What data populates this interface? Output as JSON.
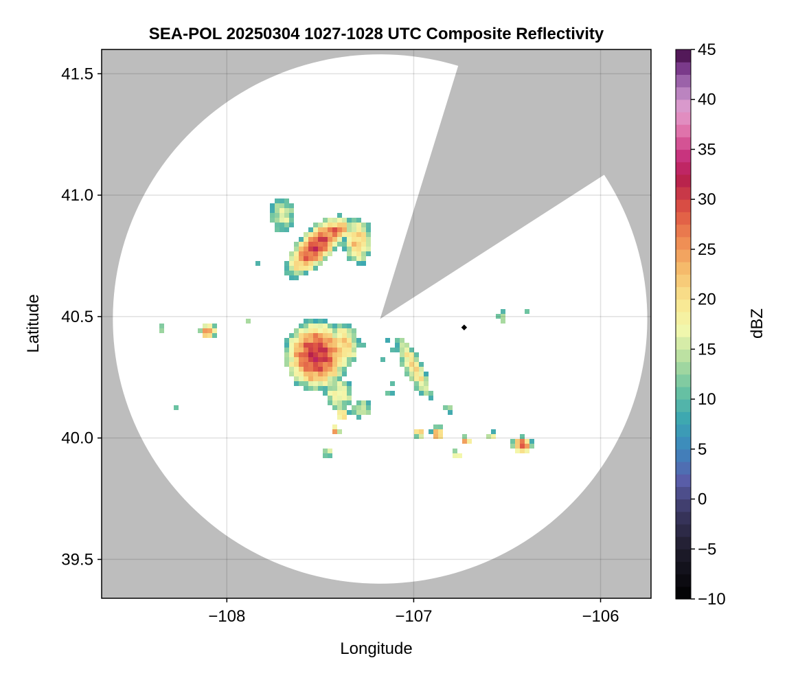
{
  "chart_data": {
    "type": "heatmap",
    "title": "SEA-POL 20250304 1027-1028 UTC Composite Reflectivity",
    "xlabel": "Longitude",
    "ylabel": "Latitude",
    "xlim": [
      -108.67,
      -105.73
    ],
    "ylim": [
      39.34,
      41.6
    ],
    "xticks": [
      -108,
      -107,
      -106
    ],
    "xtick_labels": [
      "−108",
      "−107",
      "−106"
    ],
    "yticks": [
      39.5,
      40.0,
      40.5,
      41.0,
      41.5
    ],
    "ytick_labels": [
      "39.5",
      "40.0",
      "40.5",
      "41.0",
      "41.5"
    ],
    "grid": true,
    "background_color": "#bdbdbd",
    "radar": {
      "center_lon": -107.18,
      "center_lat": 40.49,
      "range_lon": 1.43,
      "range_lat": 1.09,
      "blocked_sector_from_deg": 17,
      "blocked_sector_to_deg": 57,
      "coverage_color": "#ffffff"
    },
    "site_marker": {
      "lon": -106.73,
      "lat": 40.455
    },
    "colorbar": {
      "label": "dBZ",
      "min": -10,
      "max": 45,
      "levels": 44,
      "ticks": [
        -10,
        -5,
        0,
        5,
        10,
        15,
        20,
        25,
        30,
        35,
        40,
        45
      ],
      "tick_labels": [
        "−10",
        "−5",
        "0",
        "5",
        "10",
        "15",
        "20",
        "25",
        "30",
        "35",
        "40",
        "45"
      ],
      "colormap_stops": [
        {
          "v": -10,
          "c": "#000000"
        },
        {
          "v": -5,
          "c": "#1f1c2c"
        },
        {
          "v": -1,
          "c": "#3d3a66"
        },
        {
          "v": 2,
          "c": "#5a5fab"
        },
        {
          "v": 5,
          "c": "#3d86bd"
        },
        {
          "v": 8,
          "c": "#3ca7b1"
        },
        {
          "v": 11,
          "c": "#6cc3a1"
        },
        {
          "v": 14,
          "c": "#b4dea0"
        },
        {
          "v": 17,
          "c": "#f3f8ae"
        },
        {
          "v": 20,
          "c": "#f9e58f"
        },
        {
          "v": 23,
          "c": "#f5bc6c"
        },
        {
          "v": 26,
          "c": "#ee8852"
        },
        {
          "v": 29,
          "c": "#dd5343"
        },
        {
          "v": 32,
          "c": "#b7214c"
        },
        {
          "v": 34,
          "c": "#c52a77"
        },
        {
          "v": 37,
          "c": "#e076ad"
        },
        {
          "v": 39,
          "c": "#e29fcf"
        },
        {
          "v": 41,
          "c": "#b27ebd"
        },
        {
          "v": 43,
          "c": "#7e3d8f"
        },
        {
          "v": 45,
          "c": "#3f0841"
        }
      ]
    },
    "echoes": [
      {
        "lon": -107.52,
        "lat": 40.79,
        "sx": 0.2,
        "sy": 0.08,
        "rot": 35,
        "peak": 30
      },
      {
        "lon": -107.42,
        "lat": 40.85,
        "sx": 0.1,
        "sy": 0.05,
        "rot": 20,
        "peak": 28
      },
      {
        "lon": -107.3,
        "lat": 40.81,
        "sx": 0.08,
        "sy": 0.1,
        "rot": 0,
        "peak": 22
      },
      {
        "lon": -107.7,
        "lat": 40.92,
        "sx": 0.07,
        "sy": 0.07,
        "rot": 0,
        "peak": 16
      },
      {
        "lon": -107.52,
        "lat": 40.34,
        "sx": 0.18,
        "sy": 0.15,
        "rot": 0,
        "peak": 31
      },
      {
        "lon": -107.38,
        "lat": 40.38,
        "sx": 0.09,
        "sy": 0.1,
        "rot": 0,
        "peak": 22
      },
      {
        "lon": -107.4,
        "lat": 40.18,
        "sx": 0.08,
        "sy": 0.07,
        "rot": 0,
        "peak": 18
      },
      {
        "lon": -107.0,
        "lat": 40.29,
        "sx": 0.16,
        "sy": 0.05,
        "rot": -55,
        "peak": 20
      },
      {
        "lon": -107.15,
        "lat": 40.37,
        "sx": 0.04,
        "sy": 0.06,
        "rot": 0,
        "peak": 4
      },
      {
        "lon": -107.28,
        "lat": 40.36,
        "sx": 0.03,
        "sy": 0.03,
        "rot": 0,
        "peak": 6
      },
      {
        "lon": -108.1,
        "lat": 40.44,
        "sx": 0.05,
        "sy": 0.03,
        "rot": 0,
        "peak": 28
      },
      {
        "lon": -106.42,
        "lat": 39.97,
        "sx": 0.06,
        "sy": 0.04,
        "rot": 0,
        "peak": 28
      },
      {
        "lon": -106.87,
        "lat": 40.02,
        "sx": 0.04,
        "sy": 0.03,
        "rot": 0,
        "peak": 26
      },
      {
        "lon": -106.97,
        "lat": 40.02,
        "sx": 0.04,
        "sy": 0.02,
        "rot": 0,
        "peak": 22
      },
      {
        "lon": -106.72,
        "lat": 39.99,
        "sx": 0.03,
        "sy": 0.02,
        "rot": 0,
        "peak": 24
      },
      {
        "lon": -106.77,
        "lat": 39.93,
        "sx": 0.03,
        "sy": 0.02,
        "rot": 0,
        "peak": 20
      },
      {
        "lon": -107.42,
        "lat": 40.03,
        "sx": 0.03,
        "sy": 0.02,
        "rot": 0,
        "peak": 26
      },
      {
        "lon": -107.46,
        "lat": 39.94,
        "sx": 0.03,
        "sy": 0.02,
        "rot": 0,
        "peak": 18
      },
      {
        "lon": -107.28,
        "lat": 40.12,
        "sx": 0.05,
        "sy": 0.04,
        "rot": 0,
        "peak": 16
      },
      {
        "lon": -107.38,
        "lat": 40.1,
        "sx": 0.04,
        "sy": 0.03,
        "rot": 0,
        "peak": 22
      },
      {
        "lon": -106.58,
        "lat": 40.01,
        "sx": 0.03,
        "sy": 0.02,
        "rot": 0,
        "peak": 16
      },
      {
        "lon": -106.53,
        "lat": 40.5,
        "sx": 0.02,
        "sy": 0.04,
        "rot": 0,
        "peak": 14
      },
      {
        "lon": -106.38,
        "lat": 40.53,
        "sx": 0.02,
        "sy": 0.02,
        "rot": 0,
        "peak": 10
      },
      {
        "lon": -106.82,
        "lat": 40.12,
        "sx": 0.03,
        "sy": 0.02,
        "rot": 0,
        "peak": 12
      },
      {
        "lon": -107.89,
        "lat": 40.48,
        "sx": 0.02,
        "sy": 0.015,
        "rot": 0,
        "peak": 14
      },
      {
        "lon": -108.27,
        "lat": 40.13,
        "sx": 0.02,
        "sy": 0.015,
        "rot": 0,
        "peak": 10
      },
      {
        "lon": -108.35,
        "lat": 40.45,
        "sx": 0.015,
        "sy": 0.015,
        "rot": 0,
        "peak": 14
      },
      {
        "lon": -107.83,
        "lat": 40.72,
        "sx": 0.02,
        "sy": 0.015,
        "rot": 0,
        "peak": 12
      },
      {
        "lon": -107.28,
        "lat": 40.5,
        "sx": 0.015,
        "sy": 0.02,
        "rot": 0,
        "peak": 2
      },
      {
        "lon": -107.12,
        "lat": 40.2,
        "sx": 0.03,
        "sy": 0.03,
        "rot": 0,
        "peak": 10
      }
    ]
  }
}
